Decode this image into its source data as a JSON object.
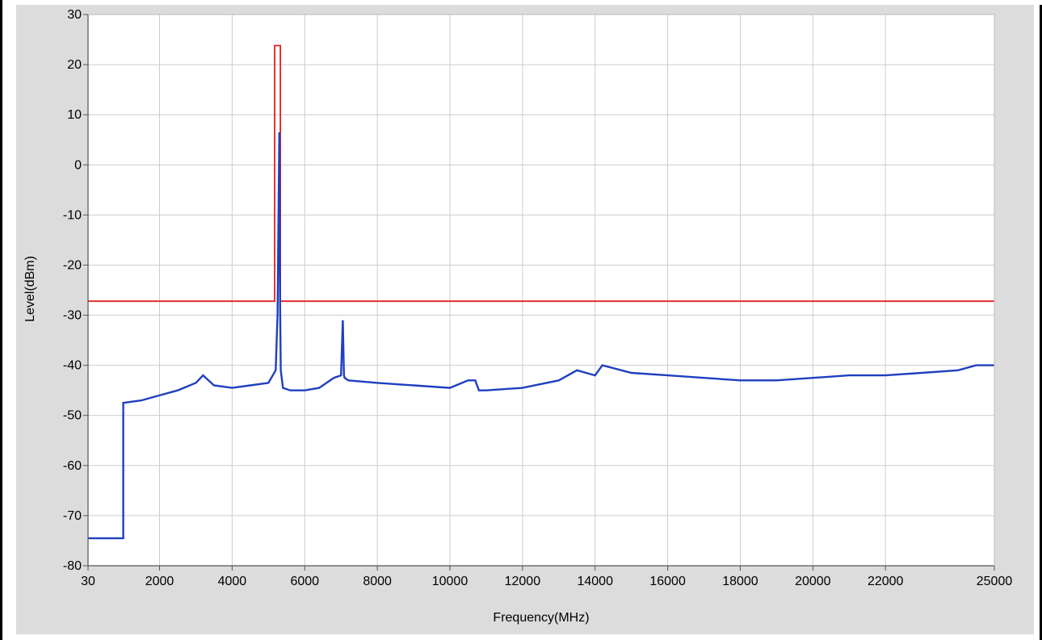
{
  "chart_data": {
    "type": "line",
    "title": "",
    "xlabel": "Frequency(MHz)",
    "ylabel": "Level(dBm)",
    "xlim": [
      30,
      25000
    ],
    "ylim": [
      -80,
      30
    ],
    "x_ticks": [
      30,
      2000,
      4000,
      6000,
      8000,
      10000,
      12000,
      14000,
      16000,
      18000,
      20000,
      22000,
      25000
    ],
    "x_tick_labels": [
      "30",
      "2000",
      "4000",
      "6000",
      "8000",
      "10000",
      "12000",
      "14000",
      "16000",
      "18000",
      "20000",
      "22000",
      "25000"
    ],
    "y_ticks": [
      30,
      20,
      10,
      0,
      -10,
      -20,
      -30,
      -40,
      -50,
      -60,
      -70,
      -80
    ],
    "y_tick_labels": [
      "30",
      "20",
      "10",
      "0",
      "-10",
      "-20",
      "-30",
      "-40",
      "-50",
      "-60",
      "-70",
      "-80"
    ],
    "grid": true,
    "series": [
      {
        "color": "#e02020",
        "x": [
          30,
          5170,
          5170,
          5330,
          5330,
          25000
        ],
        "y": [
          -27.2,
          -27.2,
          23.8,
          23.8,
          -27.2,
          -27.2
        ]
      },
      {
        "color": "#1f3fbf",
        "x": [
          30,
          1000,
          1000,
          1500,
          2000,
          2500,
          3000,
          3200,
          3500,
          4000,
          4500,
          5000,
          5200,
          5250,
          5300,
          5320,
          5340,
          5400,
          5600,
          6000,
          6400,
          6800,
          7000,
          7050,
          7080,
          7100,
          7200,
          8000,
          9000,
          10000,
          10500,
          10700,
          10800,
          11000,
          12000,
          13000,
          13500,
          14000,
          14200,
          15000,
          16000,
          17000,
          18000,
          19000,
          20000,
          21000,
          22000,
          23000,
          24000,
          24500,
          25000
        ],
        "y": [
          -74.5,
          -74.5,
          -47.5,
          -47,
          -46,
          -45,
          -43.5,
          -42,
          -44,
          -44.5,
          -44,
          -43.5,
          -41,
          -30,
          6.5,
          -27,
          -41,
          -44.5,
          -45,
          -45,
          -44.5,
          -42.5,
          -42,
          -31,
          -42,
          -42.5,
          -43,
          -43.5,
          -44,
          -44.5,
          -43,
          -43,
          -45,
          -45,
          -44.5,
          -43,
          -41,
          -42,
          -40,
          -41.5,
          -42,
          -42.5,
          -43,
          -43,
          -42.5,
          -42,
          -42,
          -41.5,
          -41,
          -40,
          -40
        ]
      }
    ]
  }
}
